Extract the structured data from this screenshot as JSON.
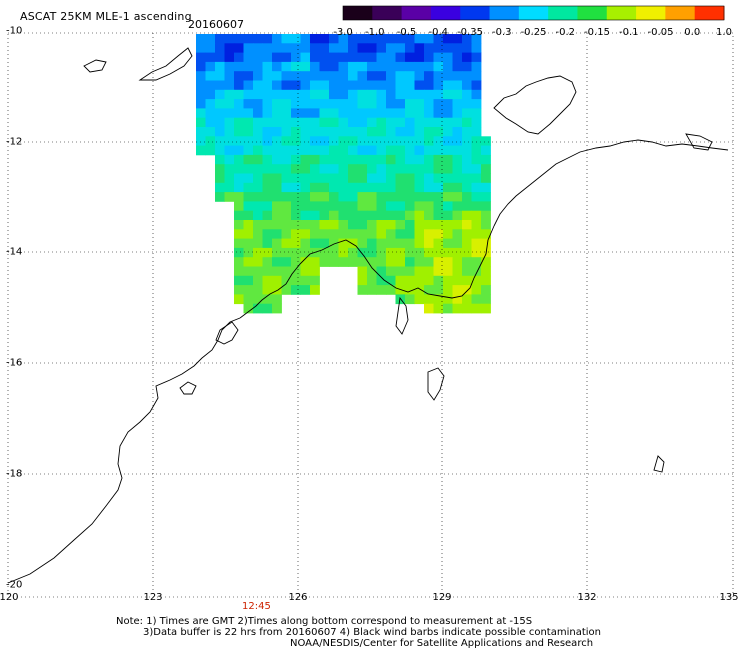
{
  "header": {
    "title": "ASCAT 25KM MLE-1 ascending",
    "date": "20160607"
  },
  "colorbar": {
    "ticks": [
      "-3.0",
      "-1.0",
      "-0.5",
      "-0.4",
      "-0.35",
      "-0.3",
      "-0.25",
      "-0.2",
      "-0.15",
      "-0.1",
      "-0.05",
      "0.0",
      "1.0"
    ],
    "colors": [
      "#1a001a",
      "#3a0058",
      "#5a00a6",
      "#3a00e0",
      "#0038f0",
      "#0090ff",
      "#00dcff",
      "#00e8a0",
      "#20e040",
      "#a8f000",
      "#f0f000",
      "#ffa000",
      "#ff3000"
    ]
  },
  "axes": {
    "x_labels": [
      "120",
      "123",
      "126",
      "129",
      "132",
      "135"
    ],
    "y_labels": [
      "-10",
      "-12",
      "-14",
      "-16",
      "-18",
      "-20"
    ]
  },
  "time_label": "12:45",
  "notes": {
    "line1": "Note: 1) Times are GMT 2)Times along bottom correspond to measurement at -15S",
    "line2": "3)Data buffer is 22 hrs from 20160607 4) Black wind barbs indicate possible contamination",
    "line3": "NOAA/NESDIS/Center for Satellite Applications and Research"
  }
}
